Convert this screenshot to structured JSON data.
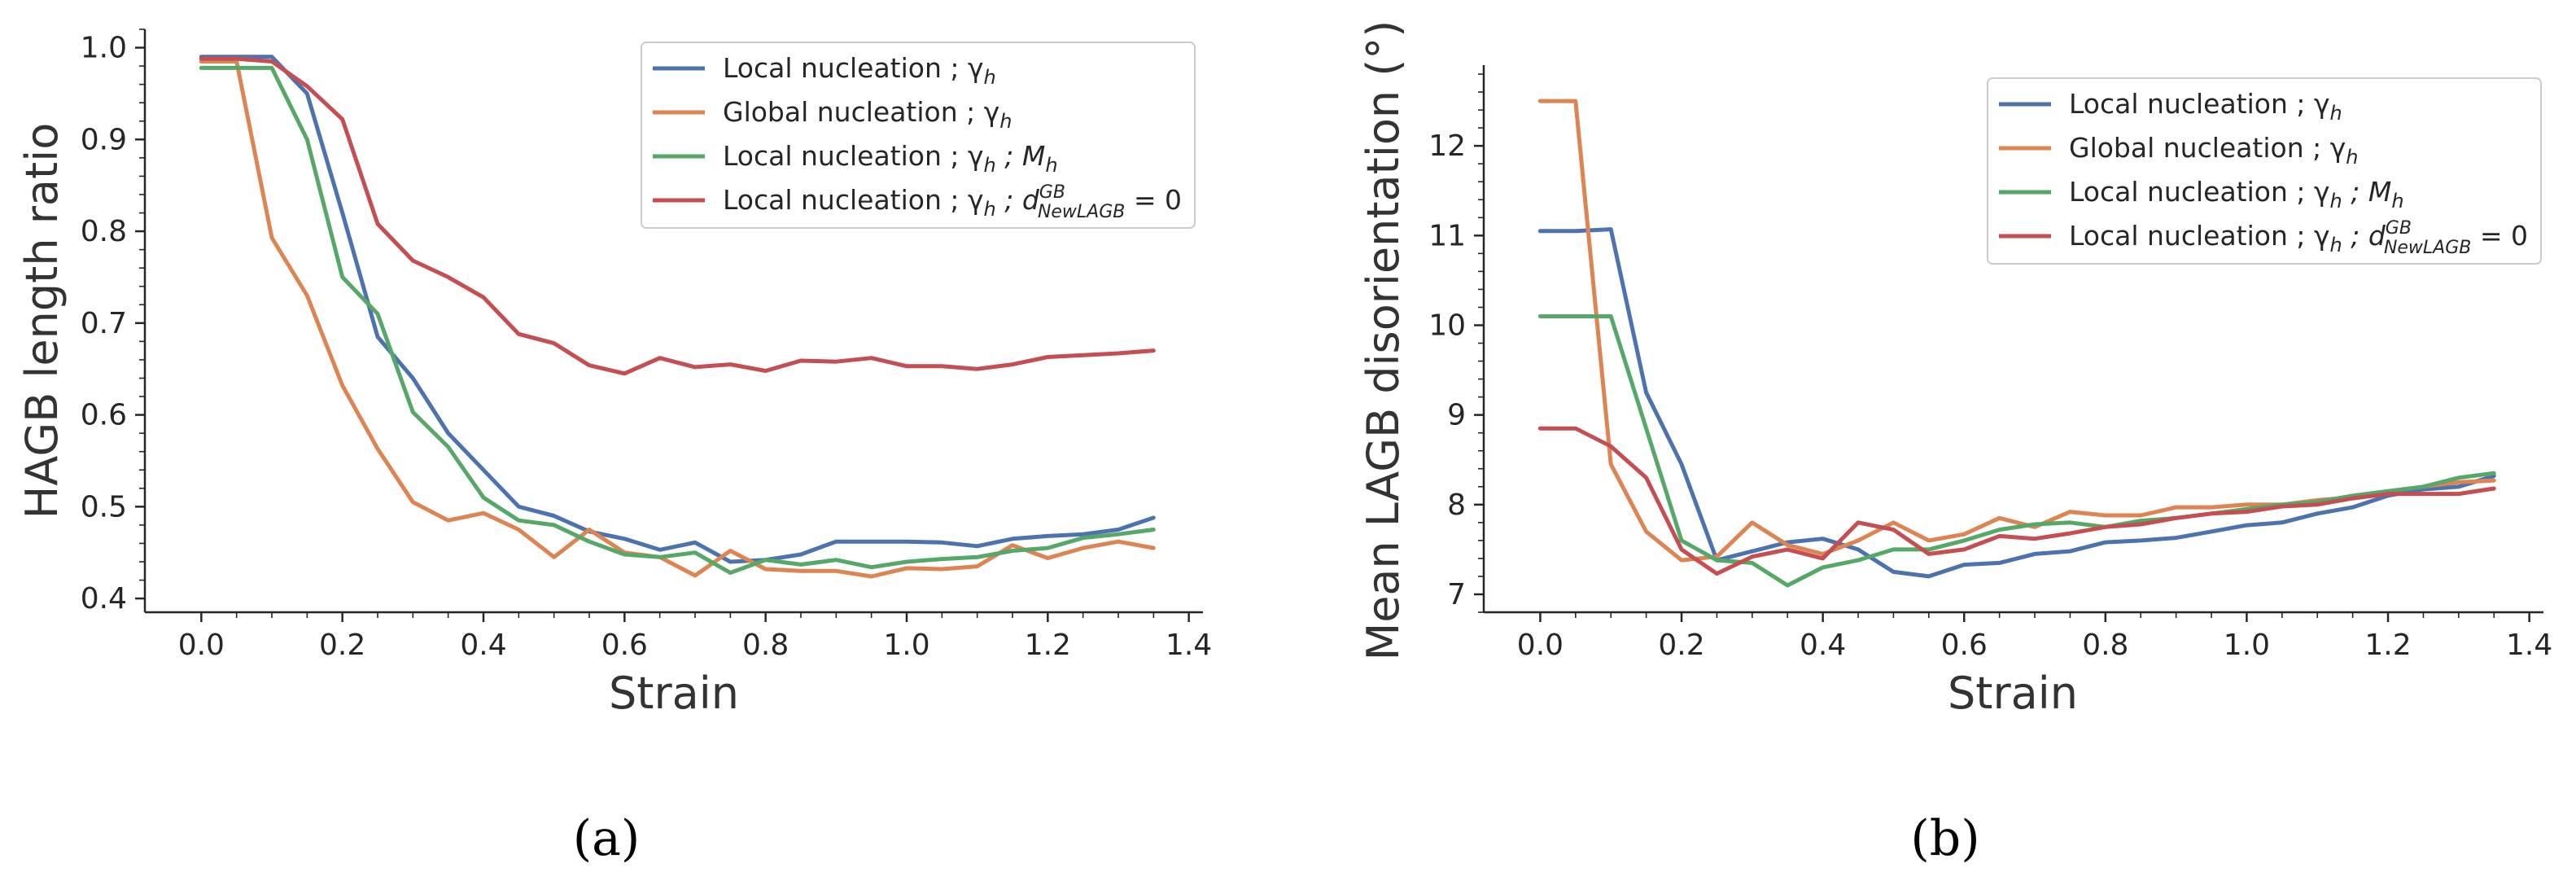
{
  "figure": {
    "panel_captions": [
      "(a)",
      "(b)"
    ]
  },
  "chart_data": [
    {
      "type": "line",
      "panel": "(a)",
      "title": "",
      "xlabel": "Strain",
      "ylabel": "HAGB length ratio",
      "xlim": [
        -0.08,
        1.42
      ],
      "ylim": [
        0.385,
        1.02
      ],
      "xticks": [
        0.0,
        0.2,
        0.4,
        0.6,
        0.8,
        1.0,
        1.2,
        1.4
      ],
      "xtick_labels": [
        "0.0",
        "0.2",
        "0.4",
        "0.6",
        "0.8",
        "1.0",
        "1.2",
        "1.4"
      ],
      "yticks": [
        0.4,
        0.5,
        0.6,
        0.7,
        0.8,
        0.9,
        1.0
      ],
      "ytick_labels": [
        "0.4",
        "0.5",
        "0.6",
        "0.7",
        "0.8",
        "0.9",
        "1.0"
      ],
      "legend_position": "top-right",
      "x": [
        0.0,
        0.05,
        0.1,
        0.15,
        0.2,
        0.25,
        0.3,
        0.35,
        0.4,
        0.45,
        0.5,
        0.55,
        0.6,
        0.65,
        0.7,
        0.75,
        0.8,
        0.85,
        0.9,
        0.95,
        1.0,
        1.05,
        1.1,
        1.15,
        1.2,
        1.25,
        1.3,
        1.35
      ],
      "series": [
        {
          "name": "Local nucleation ; γ",
          "sub": "h",
          "sup": "",
          "tail": "",
          "color": "#4c72b0",
          "values": [
            0.99,
            0.99,
            0.99,
            0.95,
            0.82,
            0.685,
            0.64,
            0.58,
            0.54,
            0.5,
            0.49,
            0.473,
            0.465,
            0.453,
            0.461,
            0.44,
            0.442,
            0.448,
            0.462,
            0.462,
            0.462,
            0.461,
            0.457,
            0.465,
            0.468,
            0.47,
            0.475,
            0.488
          ]
        },
        {
          "name": "Global nucleation ; γ",
          "sub": "h",
          "sup": "",
          "tail": "",
          "color": "#dd8452",
          "values": [
            0.985,
            0.985,
            0.793,
            0.73,
            0.632,
            0.563,
            0.505,
            0.485,
            0.493,
            0.475,
            0.445,
            0.475,
            0.45,
            0.445,
            0.425,
            0.452,
            0.432,
            0.43,
            0.43,
            0.424,
            0.433,
            0.432,
            0.435,
            0.458,
            0.444,
            0.455,
            0.462,
            0.455
          ]
        },
        {
          "name": "Local nucleation ; γ",
          "sub": "h",
          "sup": "",
          "tail": " ; M",
          "tail_sub": "h",
          "tail_end": "",
          "color": "#55a868",
          "values": [
            0.978,
            0.978,
            0.978,
            0.9,
            0.75,
            0.71,
            0.603,
            0.565,
            0.51,
            0.485,
            0.48,
            0.462,
            0.448,
            0.445,
            0.45,
            0.428,
            0.442,
            0.437,
            0.442,
            0.434,
            0.44,
            0.443,
            0.445,
            0.452,
            0.455,
            0.466,
            0.47,
            0.475
          ]
        },
        {
          "name": "Local nucleation ; γ",
          "sub": "h",
          "sup": "",
          "tail": " ; d",
          "tail_sub": "NewLAGB",
          "tail_sup": "GB",
          "tail_end": " = 0",
          "color": "#c44e52",
          "values": [
            0.988,
            0.988,
            0.985,
            0.958,
            0.922,
            0.808,
            0.768,
            0.75,
            0.728,
            0.688,
            0.678,
            0.654,
            0.645,
            0.662,
            0.652,
            0.655,
            0.648,
            0.659,
            0.658,
            0.662,
            0.653,
            0.653,
            0.65,
            0.655,
            0.663,
            0.665,
            0.667,
            0.67
          ]
        }
      ]
    },
    {
      "type": "line",
      "panel": "(b)",
      "title": "",
      "xlabel": "Strain",
      "ylabel": "Mean LAGB disorientation (°)",
      "xlim": [
        -0.08,
        1.42
      ],
      "ylim": [
        6.8,
        12.9
      ],
      "xticks": [
        0.0,
        0.2,
        0.4,
        0.6,
        0.8,
        1.0,
        1.2,
        1.4
      ],
      "xtick_labels": [
        "0.0",
        "0.2",
        "0.4",
        "0.6",
        "0.8",
        "1.0",
        "1.2",
        "1.4"
      ],
      "yticks": [
        7,
        8,
        9,
        10,
        11,
        12
      ],
      "ytick_labels": [
        "7",
        "8",
        "9",
        "10",
        "11",
        "12"
      ],
      "legend_position": "top-right",
      "x": [
        0.0,
        0.05,
        0.1,
        0.15,
        0.2,
        0.25,
        0.3,
        0.35,
        0.4,
        0.45,
        0.5,
        0.55,
        0.6,
        0.65,
        0.7,
        0.75,
        0.8,
        0.85,
        0.9,
        0.95,
        1.0,
        1.05,
        1.1,
        1.15,
        1.2,
        1.25,
        1.3,
        1.35
      ],
      "series": [
        {
          "name": "Local nucleation ; γ",
          "sub": "h",
          "color": "#4c72b0",
          "values": [
            11.05,
            11.05,
            11.07,
            9.25,
            8.45,
            7.38,
            7.48,
            7.58,
            7.62,
            7.5,
            7.25,
            7.2,
            7.33,
            7.35,
            7.45,
            7.48,
            7.58,
            7.6,
            7.63,
            7.7,
            7.77,
            7.8,
            7.9,
            7.97,
            8.1,
            8.17,
            8.2,
            8.32
          ]
        },
        {
          "name": "Global nucleation ; γ",
          "sub": "h",
          "color": "#dd8452",
          "values": [
            12.5,
            12.5,
            8.45,
            7.7,
            7.38,
            7.42,
            7.8,
            7.55,
            7.45,
            7.6,
            7.8,
            7.6,
            7.67,
            7.85,
            7.75,
            7.92,
            7.88,
            7.88,
            7.97,
            7.97,
            8.0,
            8.0,
            8.05,
            8.08,
            8.15,
            8.2,
            8.25,
            8.27
          ]
        },
        {
          "name": "Local nucleation ; γ",
          "sub": "h",
          "tail": " ; M",
          "tail_sub": "h",
          "color": "#55a868",
          "values": [
            10.1,
            10.1,
            10.1,
            8.85,
            7.6,
            7.38,
            7.35,
            7.1,
            7.3,
            7.38,
            7.5,
            7.5,
            7.6,
            7.72,
            7.78,
            7.8,
            7.75,
            7.82,
            7.85,
            7.9,
            7.95,
            8.0,
            8.03,
            8.1,
            8.15,
            8.2,
            8.3,
            8.35
          ]
        },
        {
          "name": "Local nucleation ; γ",
          "sub": "h",
          "tail": " ; d",
          "tail_sub": "NewLAGB",
          "tail_sup": "GB",
          "tail_end": " = 0",
          "color": "#c44e52",
          "values": [
            8.85,
            8.85,
            8.65,
            8.3,
            7.5,
            7.23,
            7.42,
            7.5,
            7.4,
            7.8,
            7.72,
            7.45,
            7.5,
            7.65,
            7.62,
            7.68,
            7.75,
            7.78,
            7.85,
            7.9,
            7.92,
            7.98,
            8.0,
            8.07,
            8.12,
            8.12,
            8.12,
            8.18
          ]
        }
      ]
    }
  ]
}
